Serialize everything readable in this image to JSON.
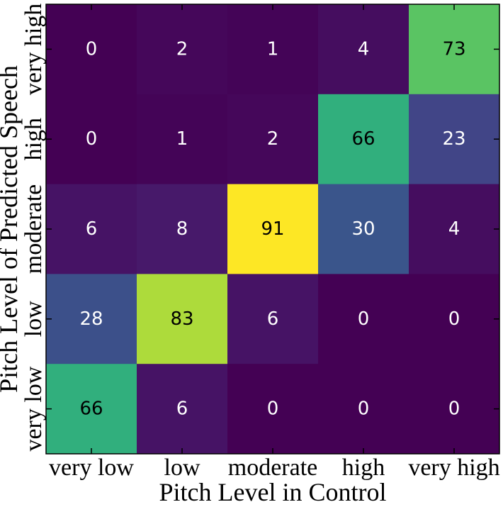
{
  "chart_data": {
    "type": "heatmap",
    "title": "",
    "xlabel": "Pitch Level in Control",
    "ylabel": "Pitch Level of Predicted Speech",
    "x_categories": [
      "very low",
      "low",
      "moderate",
      "high",
      "very high"
    ],
    "y_categories": [
      "very high",
      "high",
      "moderate",
      "low",
      "very low"
    ],
    "values": [
      [
        0,
        2,
        1,
        4,
        73
      ],
      [
        0,
        1,
        2,
        66,
        23
      ],
      [
        6,
        8,
        91,
        30,
        4
      ],
      [
        28,
        83,
        6,
        0,
        0
      ],
      [
        66,
        6,
        0,
        0,
        0
      ]
    ],
    "colormap": "viridis",
    "vmin": 0,
    "vmax": 91,
    "colorbar": false,
    "grid": false
  }
}
